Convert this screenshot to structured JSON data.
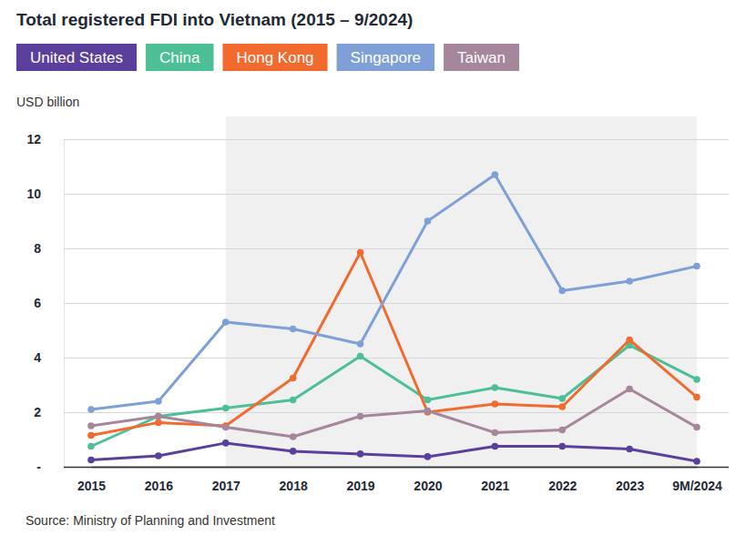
{
  "chart_data": {
    "type": "line",
    "title": "Total registered FDI into Vietnam (2015 – 9/2024)",
    "ylabel": "USD billion",
    "source": "Source: Ministry of Planning and Investment",
    "categories": [
      "2015",
      "2016",
      "2017",
      "2018",
      "2019",
      "2020",
      "2021",
      "2022",
      "2023",
      "9M/2024"
    ],
    "series": [
      {
        "name": "United States",
        "color": "#5b3f9c",
        "values": [
          0.25,
          0.4,
          0.87,
          0.57,
          0.47,
          0.37,
          0.75,
          0.75,
          0.65,
          0.2
        ]
      },
      {
        "name": "China",
        "color": "#4dbf96",
        "values": [
          0.75,
          1.85,
          2.15,
          2.45,
          4.05,
          2.45,
          2.9,
          2.5,
          4.45,
          3.2
        ]
      },
      {
        "name": "Hong Kong",
        "color": "#f26a2e",
        "values": [
          1.15,
          1.62,
          1.5,
          3.25,
          7.85,
          2.0,
          2.3,
          2.2,
          4.65,
          2.55
        ]
      },
      {
        "name": "Singapore",
        "color": "#7fa0d6",
        "values": [
          2.1,
          2.4,
          5.3,
          5.05,
          4.5,
          9.0,
          10.7,
          6.45,
          6.8,
          7.35
        ]
      },
      {
        "name": "Taiwan",
        "color": "#a5869b",
        "values": [
          1.5,
          1.85,
          1.45,
          1.1,
          1.85,
          2.05,
          1.25,
          1.35,
          2.85,
          1.45
        ]
      }
    ],
    "ylim": [
      0,
      12
    ],
    "yticks": [
      {
        "value": 0,
        "label": "-"
      },
      2,
      4,
      6,
      8,
      10,
      12
    ],
    "grid": true,
    "legend": "top-left",
    "marker": "circle"
  }
}
